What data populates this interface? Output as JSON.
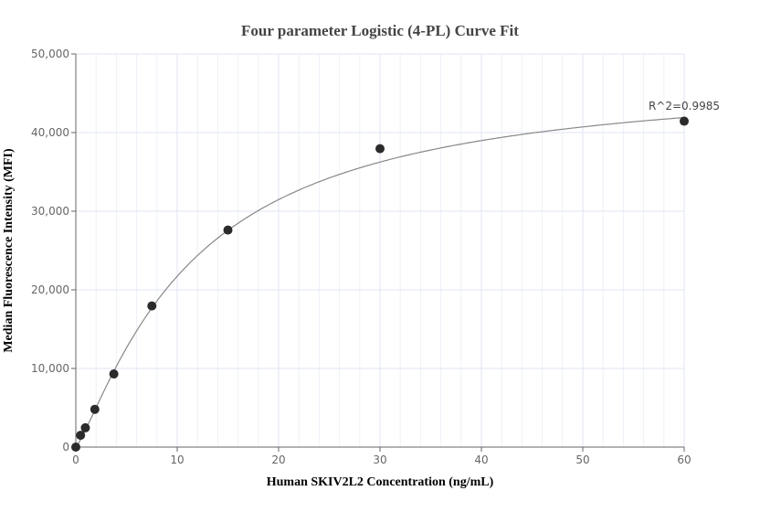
{
  "chart_data": {
    "type": "scatter",
    "title": "Four parameter Logistic (4-PL) Curve Fit",
    "xlabel": "Human SKIV2L2 Concentration (ng/mL)",
    "ylabel": "Median Fluorescence Intensity (MFI)",
    "xlim": [
      0,
      60
    ],
    "ylim": [
      0,
      50000
    ],
    "x_ticks": [
      "0",
      "10",
      "20",
      "30",
      "40",
      "50",
      "60"
    ],
    "y_ticks": [
      "0",
      "10,000",
      "20,000",
      "30,000",
      "40,000",
      "50,000"
    ],
    "grid": true,
    "points": [
      {
        "x": 0,
        "y": 0
      },
      {
        "x": 0.47,
        "y": 1500
      },
      {
        "x": 0.94,
        "y": 2450
      },
      {
        "x": 1.875,
        "y": 4800
      },
      {
        "x": 3.75,
        "y": 9300
      },
      {
        "x": 7.5,
        "y": 17950
      },
      {
        "x": 15,
        "y": 27600
      },
      {
        "x": 30,
        "y": 37950
      },
      {
        "x": 60,
        "y": 41450
      }
    ],
    "fit_line": "4-PL curve",
    "annotation": "R^2=0.9985",
    "colors": {
      "points": "#2b2b2b",
      "curve": "#888888",
      "grid": "#e3e8f5",
      "axis": "#666666"
    }
  }
}
